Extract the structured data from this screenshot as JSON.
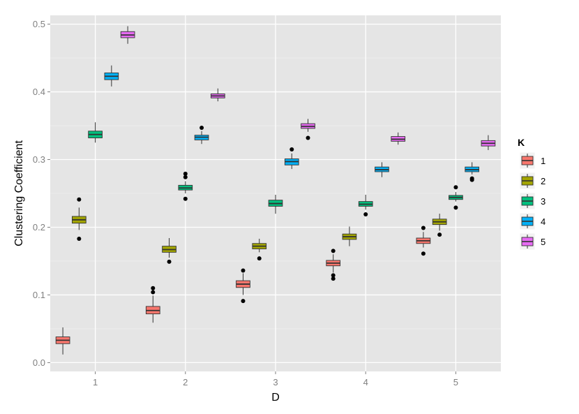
{
  "chart_data": {
    "type": "box",
    "title": "",
    "xlabel": "D",
    "ylabel": "Clustering Coefficient",
    "ylim": [
      -0.013,
      0.513
    ],
    "yticks": [
      "0.0",
      "0.1",
      "0.2",
      "0.3",
      "0.4",
      "0.5"
    ],
    "categories": [
      "1",
      "2",
      "3",
      "4",
      "5"
    ],
    "legend": {
      "title": "K",
      "position": "right",
      "labels": [
        "1",
        "2",
        "3",
        "4",
        "5"
      ]
    },
    "colors": [
      "#F8766D",
      "#A3A500",
      "#00BF7D",
      "#00B0F6",
      "#E76BF3"
    ],
    "background": "#E5E5E5",
    "grid": true,
    "series": [
      {
        "name": "1",
        "boxes": [
          {
            "x": "1",
            "whislo": 0.012,
            "q1": 0.028,
            "med": 0.033,
            "q3": 0.038,
            "whishi": 0.052,
            "outliers": []
          },
          {
            "x": "2",
            "whislo": 0.059,
            "q1": 0.072,
            "med": 0.077,
            "q3": 0.083,
            "whishi": 0.099,
            "outliers": [
              0.104,
              0.11
            ]
          },
          {
            "x": "3",
            "whislo": 0.1,
            "q1": 0.111,
            "med": 0.116,
            "q3": 0.121,
            "whishi": 0.132,
            "outliers": [
              0.091,
              0.136
            ]
          },
          {
            "x": "4",
            "whislo": 0.133,
            "q1": 0.143,
            "med": 0.147,
            "q3": 0.151,
            "whishi": 0.16,
            "outliers": [
              0.124,
              0.129,
              0.165
            ]
          },
          {
            "x": "5",
            "whislo": 0.17,
            "q1": 0.176,
            "med": 0.18,
            "q3": 0.184,
            "whishi": 0.193,
            "outliers": [
              0.161,
              0.199
            ]
          }
        ]
      },
      {
        "name": "2",
        "boxes": [
          {
            "x": "1",
            "whislo": 0.196,
            "q1": 0.206,
            "med": 0.211,
            "q3": 0.216,
            "whishi": 0.229,
            "outliers": [
              0.183,
              0.241
            ]
          },
          {
            "x": "2",
            "whislo": 0.155,
            "q1": 0.163,
            "med": 0.167,
            "q3": 0.172,
            "whishi": 0.184,
            "outliers": [
              0.149
            ]
          },
          {
            "x": "3",
            "whislo": 0.163,
            "q1": 0.168,
            "med": 0.172,
            "q3": 0.176,
            "whishi": 0.183,
            "outliers": [
              0.154
            ]
          },
          {
            "x": "4",
            "whislo": 0.172,
            "q1": 0.182,
            "med": 0.186,
            "q3": 0.19,
            "whishi": 0.201,
            "outliers": []
          },
          {
            "x": "5",
            "whislo": 0.195,
            "q1": 0.204,
            "med": 0.208,
            "q3": 0.212,
            "whishi": 0.22,
            "outliers": [
              0.189
            ]
          }
        ]
      },
      {
        "name": "3",
        "boxes": [
          {
            "x": "1",
            "whislo": 0.325,
            "q1": 0.332,
            "med": 0.337,
            "q3": 0.342,
            "whishi": 0.355,
            "outliers": []
          },
          {
            "x": "2",
            "whislo": 0.25,
            "q1": 0.255,
            "med": 0.258,
            "q3": 0.262,
            "whishi": 0.268,
            "outliers": [
              0.242,
              0.274,
              0.279
            ]
          },
          {
            "x": "3",
            "whislo": 0.22,
            "q1": 0.231,
            "med": 0.235,
            "q3": 0.24,
            "whishi": 0.248,
            "outliers": []
          },
          {
            "x": "4",
            "whislo": 0.226,
            "q1": 0.231,
            "med": 0.234,
            "q3": 0.238,
            "whishi": 0.248,
            "outliers": [
              0.219
            ]
          },
          {
            "x": "5",
            "whislo": 0.238,
            "q1": 0.241,
            "med": 0.244,
            "q3": 0.247,
            "whishi": 0.252,
            "outliers": [
              0.229,
              0.259
            ]
          }
        ]
      },
      {
        "name": "4",
        "boxes": [
          {
            "x": "1",
            "whislo": 0.408,
            "q1": 0.418,
            "med": 0.423,
            "q3": 0.428,
            "whishi": 0.439,
            "outliers": []
          },
          {
            "x": "2",
            "whislo": 0.323,
            "q1": 0.329,
            "med": 0.333,
            "q3": 0.336,
            "whishi": 0.342,
            "outliers": [
              0.347
            ]
          },
          {
            "x": "3",
            "whislo": 0.286,
            "q1": 0.292,
            "med": 0.297,
            "q3": 0.301,
            "whishi": 0.309,
            "outliers": [
              0.315
            ]
          },
          {
            "x": "4",
            "whislo": 0.274,
            "q1": 0.282,
            "med": 0.285,
            "q3": 0.289,
            "whishi": 0.296,
            "outliers": []
          },
          {
            "x": "5",
            "whislo": 0.278,
            "q1": 0.282,
            "med": 0.285,
            "q3": 0.289,
            "whishi": 0.296,
            "outliers": [
              0.27,
              0.272
            ]
          }
        ]
      },
      {
        "name": "5",
        "boxes": [
          {
            "x": "1",
            "whislo": 0.471,
            "q1": 0.48,
            "med": 0.484,
            "q3": 0.489,
            "whishi": 0.497,
            "outliers": []
          },
          {
            "x": "2",
            "whislo": 0.386,
            "q1": 0.391,
            "med": 0.394,
            "q3": 0.397,
            "whishi": 0.405,
            "outliers": []
          },
          {
            "x": "3",
            "whislo": 0.341,
            "q1": 0.346,
            "med": 0.349,
            "q3": 0.353,
            "whishi": 0.36,
            "outliers": [
              0.332
            ]
          },
          {
            "x": "4",
            "whislo": 0.322,
            "q1": 0.327,
            "med": 0.33,
            "q3": 0.334,
            "whishi": 0.34,
            "outliers": []
          },
          {
            "x": "5",
            "whislo": 0.314,
            "q1": 0.32,
            "med": 0.324,
            "q3": 0.328,
            "whishi": 0.336,
            "outliers": []
          }
        ]
      }
    ]
  }
}
